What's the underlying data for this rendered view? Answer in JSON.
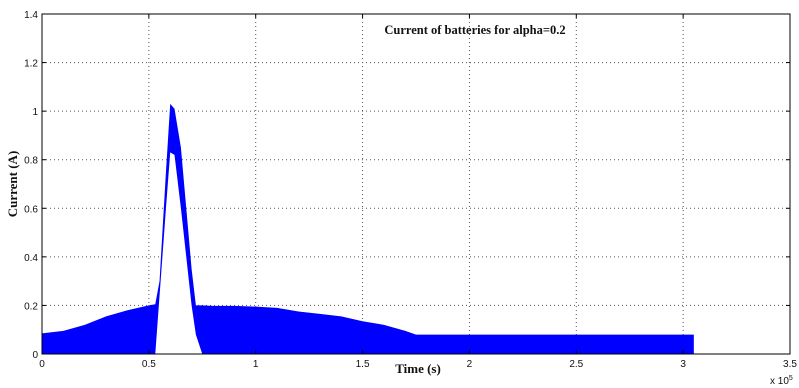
{
  "chart_data": {
    "type": "area",
    "title": "Current of batteries for alpha=0.2",
    "xlabel": "Time (s)",
    "ylabel": "Current (A)",
    "x_multiplier_label": "x 10",
    "x_multiplier_exponent": "5",
    "xlim": [
      0,
      3.5
    ],
    "ylim": [
      0,
      1.4
    ],
    "x_ticks": [
      "0",
      "0.5",
      "1",
      "1.5",
      "2",
      "2.5",
      "3",
      "3.5"
    ],
    "y_ticks": [
      "0",
      "0.2",
      "0.4",
      "0.6",
      "0.8",
      "1",
      "1.2",
      "1.4"
    ],
    "grid": true,
    "series_color": "#0000ff",
    "series": [
      {
        "upper": {
          "x": [
            0,
            0.1,
            0.2,
            0.3,
            0.4,
            0.5,
            0.53,
            0.55,
            0.58,
            0.6,
            0.62,
            0.65,
            0.7,
            0.72,
            0.75,
            0.8,
            0.9,
            1.0,
            1.1,
            1.2,
            1.3,
            1.4,
            1.5,
            1.6,
            1.7,
            1.75,
            2.0,
            2.5,
            3.0,
            3.05
          ],
          "y": [
            0.085,
            0.095,
            0.12,
            0.155,
            0.18,
            0.2,
            0.205,
            0.3,
            0.75,
            1.03,
            1.01,
            0.85,
            0.35,
            0.2,
            0.2,
            0.198,
            0.198,
            0.195,
            0.19,
            0.175,
            0.165,
            0.155,
            0.135,
            0.12,
            0.095,
            0.08,
            0.08,
            0.08,
            0.08,
            0.08
          ]
        },
        "gap": {
          "x": [
            0.53,
            0.58,
            0.6,
            0.62,
            0.65,
            0.7,
            0.72,
            0.75
          ],
          "y": [
            0,
            0.6,
            0.83,
            0.82,
            0.6,
            0.2,
            0.08,
            0
          ]
        }
      }
    ]
  }
}
